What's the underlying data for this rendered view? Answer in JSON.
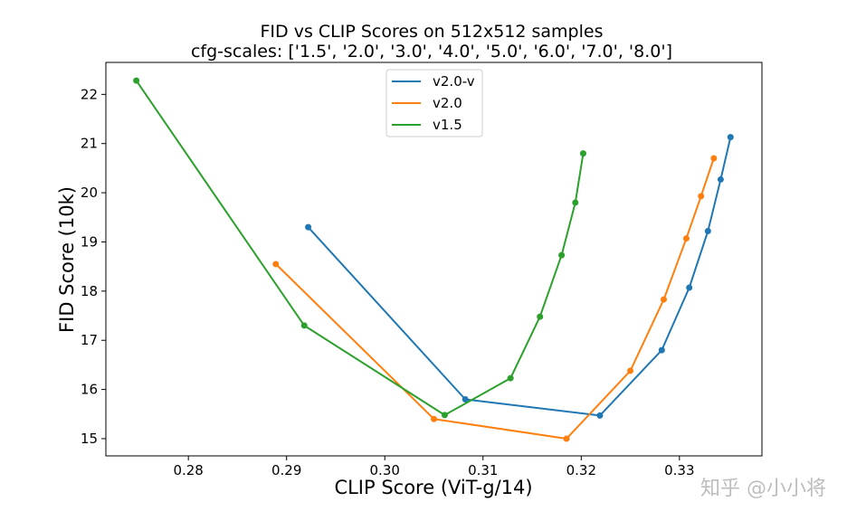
{
  "chart_data": {
    "type": "line",
    "title": "FID vs CLIP Scores on 512x512 samples",
    "subtitle": "cfg-scales: ['1.5', '2.0', '3.0', '4.0', '5.0', '6.0', '7.0', '8.0']",
    "xlabel": "CLIP Score (ViT-g/14)",
    "ylabel": "FID Score (10k)",
    "xlim": [
      0.2716,
      0.3384
    ],
    "ylim": [
      14.65,
      22.65
    ],
    "xticks": [
      0.28,
      0.29,
      0.3,
      0.31,
      0.32,
      0.33
    ],
    "xtick_labels": [
      "0.28",
      "0.29",
      "0.30",
      "0.31",
      "0.32",
      "0.33"
    ],
    "yticks": [
      15,
      16,
      17,
      18,
      19,
      20,
      21,
      22
    ],
    "ytick_labels": [
      "15",
      "16",
      "17",
      "18",
      "19",
      "20",
      "21",
      "22"
    ],
    "grid": false,
    "legend_position": "upper-center",
    "series": [
      {
        "name": "v2.0-v",
        "color": "#1f77b4",
        "x": [
          0.2922,
          0.3082,
          0.3219,
          0.3282,
          0.331,
          0.3329,
          0.3342,
          0.3352
        ],
        "y": [
          19.3,
          15.8,
          15.47,
          16.8,
          18.07,
          19.22,
          20.27,
          21.13
        ]
      },
      {
        "name": "v2.0",
        "color": "#ff7f0e",
        "x": [
          0.2889,
          0.305,
          0.3185,
          0.325,
          0.3284,
          0.3307,
          0.3322,
          0.3335
        ],
        "y": [
          18.55,
          15.4,
          15.0,
          16.38,
          17.83,
          19.07,
          19.93,
          20.7
        ]
      },
      {
        "name": "v1.5",
        "color": "#2ca02c",
        "x": [
          0.2747,
          0.2918,
          0.3061,
          0.3128,
          0.3158,
          0.318,
          0.3194,
          0.3202
        ],
        "y": [
          22.28,
          17.3,
          15.48,
          16.23,
          17.48,
          18.73,
          19.8,
          20.8
        ]
      }
    ]
  },
  "watermark": "知乎 @小小将"
}
